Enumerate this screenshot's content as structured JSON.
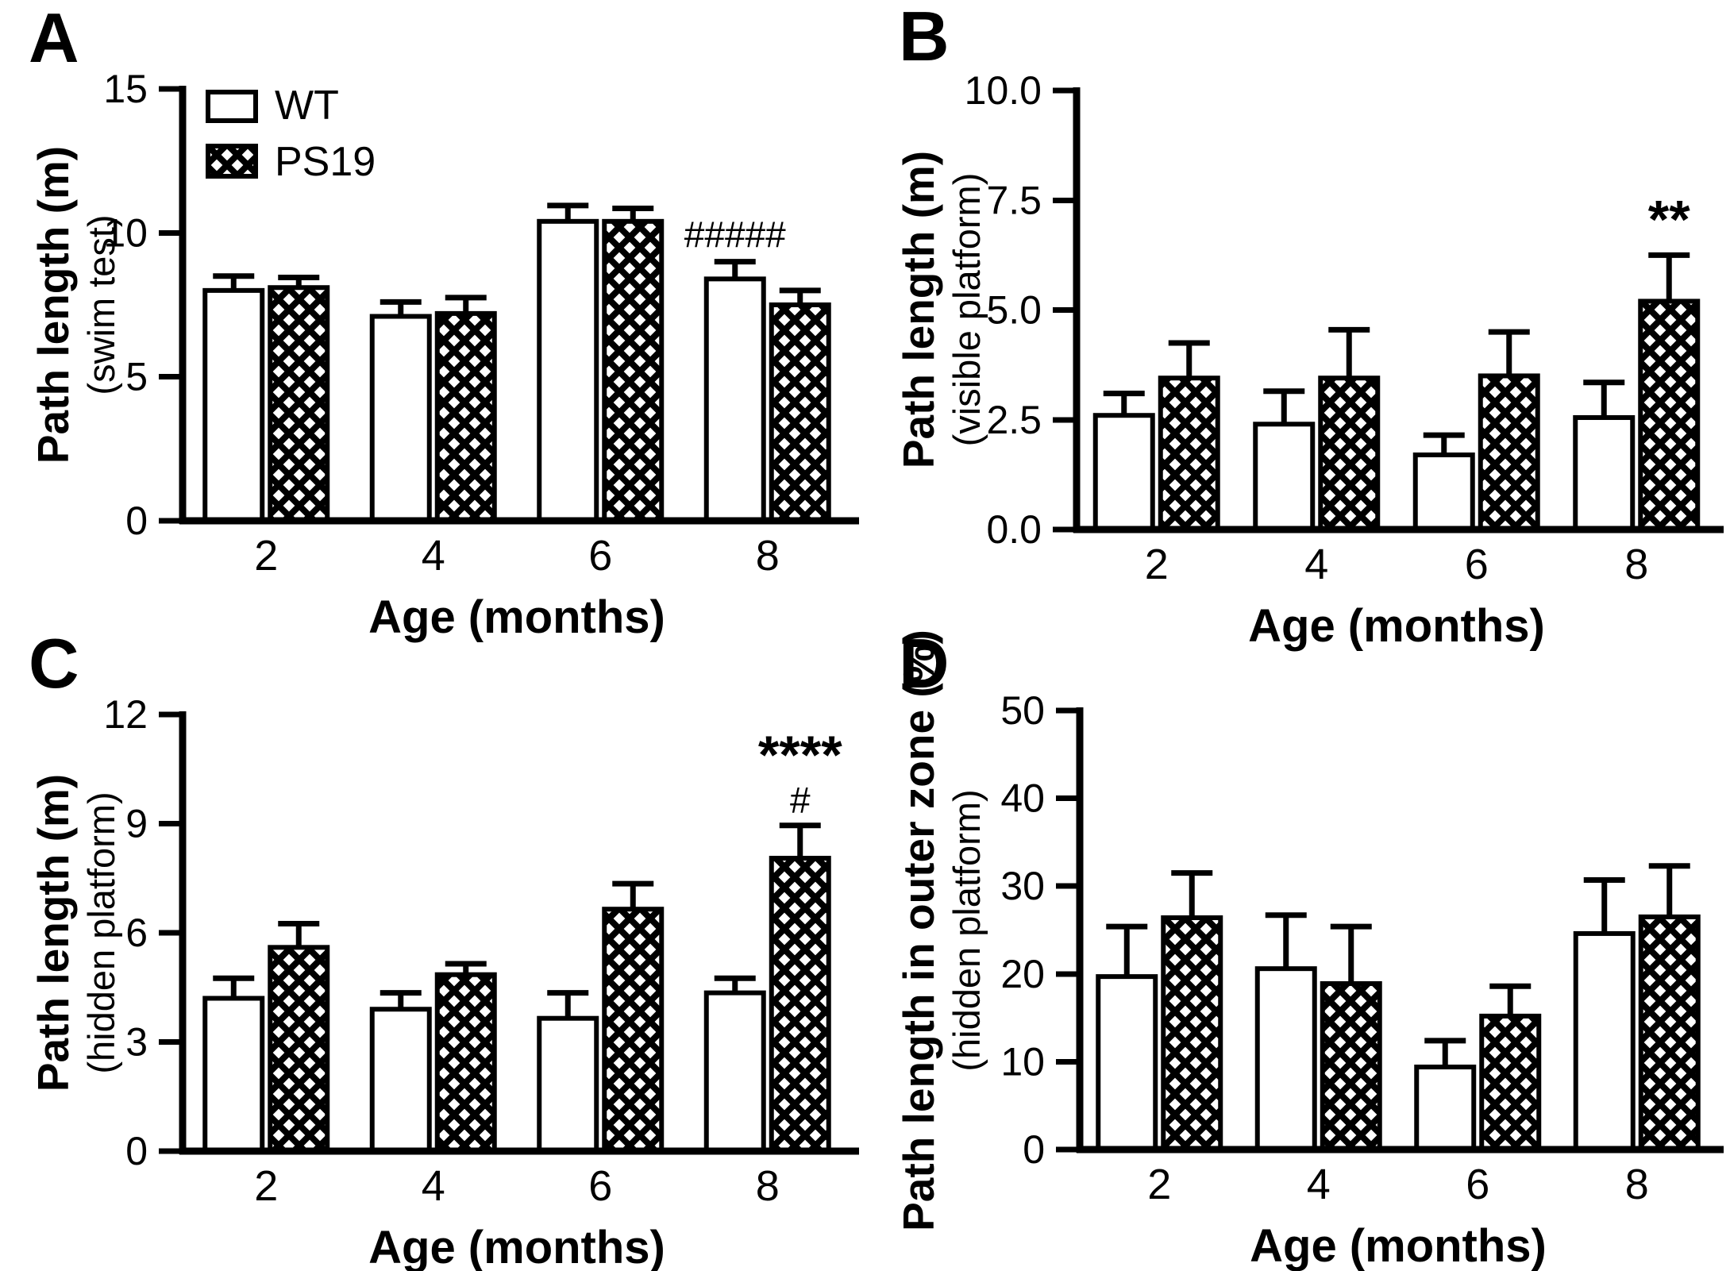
{
  "figure": {
    "background_color": "#ffffff",
    "ink_color": "#000000",
    "legend": {
      "items": [
        "WT",
        "PS19"
      ]
    }
  },
  "chart_data": [
    {
      "type": "bar",
      "panel_label": "A",
      "ylabel": "Path length (m)",
      "ylabel_sub": "(swim test)",
      "xlabel": "Age (months)",
      "categories": [
        "2",
        "4",
        "6",
        "8"
      ],
      "ylim": [
        0,
        15
      ],
      "yticks": [
        {
          "v": 0,
          "label": "0"
        },
        {
          "v": 5,
          "label": "5"
        },
        {
          "v": 10,
          "label": "10"
        },
        {
          "v": 15,
          "label": "15"
        }
      ],
      "grid": false,
      "legend_visible": true,
      "legend_position": "top-left-inside",
      "series": [
        {
          "name": "WT",
          "fill": "white",
          "values": [
            8.0,
            7.1,
            10.4,
            8.4
          ],
          "errors": [
            0.5,
            0.5,
            0.55,
            0.6
          ]
        },
        {
          "name": "PS19",
          "fill": "crosshatch",
          "values": [
            8.1,
            7.2,
            10.4,
            7.5
          ],
          "errors": [
            0.35,
            0.55,
            0.45,
            0.5
          ]
        }
      ],
      "annotations": [
        {
          "text": "#####",
          "series": "WT",
          "category": "8",
          "gap": 18,
          "font_px": 46,
          "bold": false
        }
      ]
    },
    {
      "type": "bar",
      "panel_label": "B",
      "ylabel": "Path length (m)",
      "ylabel_sub": "(visible platform)",
      "xlabel": "Age (months)",
      "categories": [
        "2",
        "4",
        "6",
        "8"
      ],
      "ylim": [
        0,
        10
      ],
      "yticks": [
        {
          "v": 0,
          "label": "0.0"
        },
        {
          "v": 2.5,
          "label": "2.5"
        },
        {
          "v": 5,
          "label": "5.0"
        },
        {
          "v": 7.5,
          "label": "7.5"
        },
        {
          "v": 10,
          "label": "10.0"
        }
      ],
      "grid": false,
      "legend_visible": false,
      "series": [
        {
          "name": "WT",
          "fill": "white",
          "values": [
            2.6,
            2.4,
            1.7,
            2.55
          ],
          "errors": [
            0.5,
            0.75,
            0.45,
            0.8
          ]
        },
        {
          "name": "PS19",
          "fill": "crosshatch",
          "values": [
            3.45,
            3.45,
            3.5,
            5.2
          ],
          "errors": [
            0.8,
            1.1,
            1.0,
            1.05
          ]
        }
      ],
      "annotations": [
        {
          "text": "**",
          "series": "PS19",
          "category": "8",
          "gap": 22,
          "font_px": 68,
          "bold": true
        }
      ]
    },
    {
      "type": "bar",
      "panel_label": "C",
      "ylabel": "Path length (m)",
      "ylabel_sub": "(hidden platform)",
      "xlabel": "Age (months)",
      "categories": [
        "2",
        "4",
        "6",
        "8"
      ],
      "ylim": [
        0,
        12
      ],
      "yticks": [
        {
          "v": 0,
          "label": "0"
        },
        {
          "v": 3,
          "label": "3"
        },
        {
          "v": 6,
          "label": "6"
        },
        {
          "v": 9,
          "label": "9"
        },
        {
          "v": 12,
          "label": "12"
        }
      ],
      "grid": false,
      "legend_visible": false,
      "series": [
        {
          "name": "WT",
          "fill": "white",
          "values": [
            4.2,
            3.9,
            3.65,
            4.35
          ],
          "errors": [
            0.55,
            0.45,
            0.7,
            0.4
          ]
        },
        {
          "name": "PS19",
          "fill": "crosshatch",
          "values": [
            5.6,
            4.85,
            6.65,
            8.05
          ],
          "errors": [
            0.65,
            0.3,
            0.7,
            0.9
          ]
        }
      ],
      "annotations": [
        {
          "text": "#",
          "series": "PS19",
          "category": "8",
          "gap": 16,
          "font_px": 46,
          "bold": false
        },
        {
          "text": "****",
          "series": "PS19",
          "category": "8",
          "gap": 66,
          "font_px": 68,
          "bold": true
        }
      ]
    },
    {
      "type": "bar",
      "panel_label": "D",
      "ylabel": "Path length in outer zone (%)",
      "ylabel_sub": "(hidden platform)",
      "xlabel": "Age (months)",
      "categories": [
        "2",
        "4",
        "6",
        "8"
      ],
      "ylim": [
        0,
        50
      ],
      "yticks": [
        {
          "v": 0,
          "label": "0"
        },
        {
          "v": 10,
          "label": "10"
        },
        {
          "v": 20,
          "label": "20"
        },
        {
          "v": 30,
          "label": "30"
        },
        {
          "v": 40,
          "label": "40"
        },
        {
          "v": 50,
          "label": "50"
        }
      ],
      "grid": false,
      "legend_visible": false,
      "series": [
        {
          "name": "WT",
          "fill": "white",
          "values": [
            19.7,
            20.6,
            9.4,
            24.6
          ],
          "errors": [
            5.7,
            6.1,
            3.0,
            6.1
          ]
        },
        {
          "name": "PS19",
          "fill": "crosshatch",
          "values": [
            26.4,
            18.9,
            15.2,
            26.5
          ],
          "errors": [
            5.1,
            6.5,
            3.4,
            5.8
          ]
        }
      ],
      "annotations": []
    }
  ]
}
